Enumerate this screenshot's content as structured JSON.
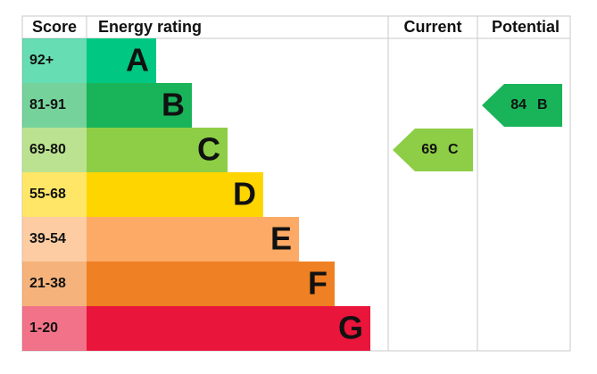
{
  "header": {
    "score": "Score",
    "rating": "Energy rating",
    "current": "Current",
    "potential": "Potential"
  },
  "bands": [
    {
      "score": "92+",
      "letter": "A",
      "color": "#00c781"
    },
    {
      "score": "81-91",
      "letter": "B",
      "color": "#19b459"
    },
    {
      "score": "69-80",
      "letter": "C",
      "color": "#8dce46"
    },
    {
      "score": "55-68",
      "letter": "D",
      "color": "#ffd500"
    },
    {
      "score": "39-54",
      "letter": "E",
      "color": "#fcaa65"
    },
    {
      "score": "21-38",
      "letter": "F",
      "color": "#ef8023"
    },
    {
      "score": "1-20",
      "letter": "G",
      "color": "#e9153b"
    }
  ],
  "current": {
    "value": 69,
    "letter": "C"
  },
  "potential": {
    "value": 84,
    "letter": "B"
  }
}
